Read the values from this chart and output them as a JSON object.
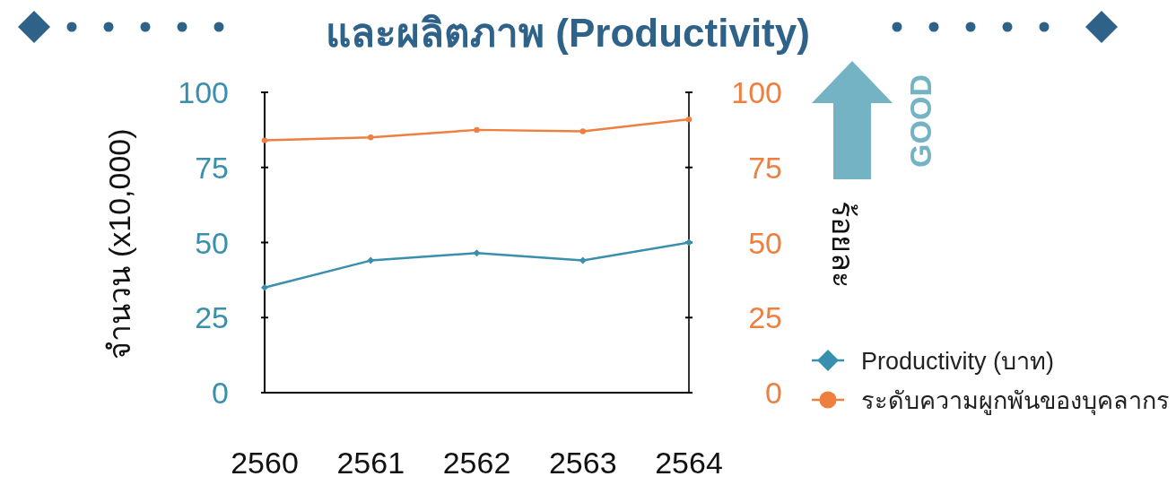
{
  "chart_data": {
    "type": "line",
    "title": "และผลิตภาพ (Productivity)",
    "categories": [
      "2560",
      "2561",
      "2562",
      "2563",
      "2564"
    ],
    "series": [
      {
        "name": "Productivity (บาท)",
        "color": "#3a8fae",
        "marker": "diamond",
        "values": [
          35,
          44,
          46.5,
          44,
          50
        ]
      },
      {
        "name": "ระดับความผูกพันของบุคลากร",
        "color": "#ee7f3f",
        "marker": "circle",
        "axis": "y2",
        "values": [
          84,
          85,
          87.5,
          87,
          91
        ]
      }
    ],
    "ylabel": "จำนวน (x10,000)",
    "y2label": "ร้อยละ",
    "ylim": [
      0,
      100
    ],
    "yticks": [
      0,
      25,
      50,
      75,
      100
    ],
    "y2lim": [
      0,
      100
    ],
    "y2ticks": [
      0,
      25,
      50,
      75,
      100
    ],
    "legend": "right",
    "annotations": [
      "GOOD"
    ]
  }
}
